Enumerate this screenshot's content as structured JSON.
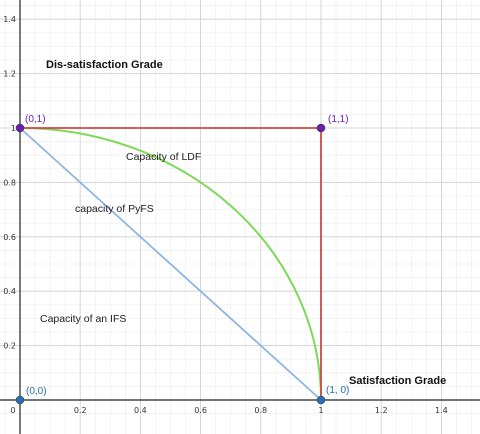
{
  "chart_data": {
    "type": "diagram",
    "xlim": [
      -0.05,
      1.5
    ],
    "ylim": [
      -0.05,
      1.5
    ],
    "x_ticks": [
      "0",
      "0.2",
      "0.4",
      "0.6",
      "0.8",
      "1",
      "1.2",
      "1.4"
    ],
    "y_ticks": [
      "0",
      "0.2",
      "0.4",
      "0.6",
      "0.8",
      "1",
      "1.2",
      "1.4"
    ],
    "grid": true,
    "x_axis_title": "Satisfaction Grade",
    "y_axis_title": "Dis-satisfaction Grade",
    "regions": [
      {
        "label": "Capacity of LDF",
        "color": "#d04848"
      },
      {
        "label": "capacity of PyFS",
        "color": "#7ed957"
      },
      {
        "label": "Capacity of an IFS",
        "color": "#8fb5e3"
      }
    ],
    "points": [
      {
        "label": "(0,0)",
        "x": 0,
        "y": 0,
        "color": "#2a6db5"
      },
      {
        "label": "(1, 0)",
        "x": 1,
        "y": 0,
        "color": "#2a6db5"
      },
      {
        "label": "(0,1)",
        "x": 0,
        "y": 1,
        "color": "#6a1fb0"
      },
      {
        "label": "(1,1)",
        "x": 1,
        "y": 1,
        "color": "#6a1fb0"
      }
    ],
    "curves": {
      "ldf_square_color": "#d04848",
      "pyfs_arc_color": "#7ed957",
      "ifs_line_color": "#8fb5e3"
    }
  }
}
